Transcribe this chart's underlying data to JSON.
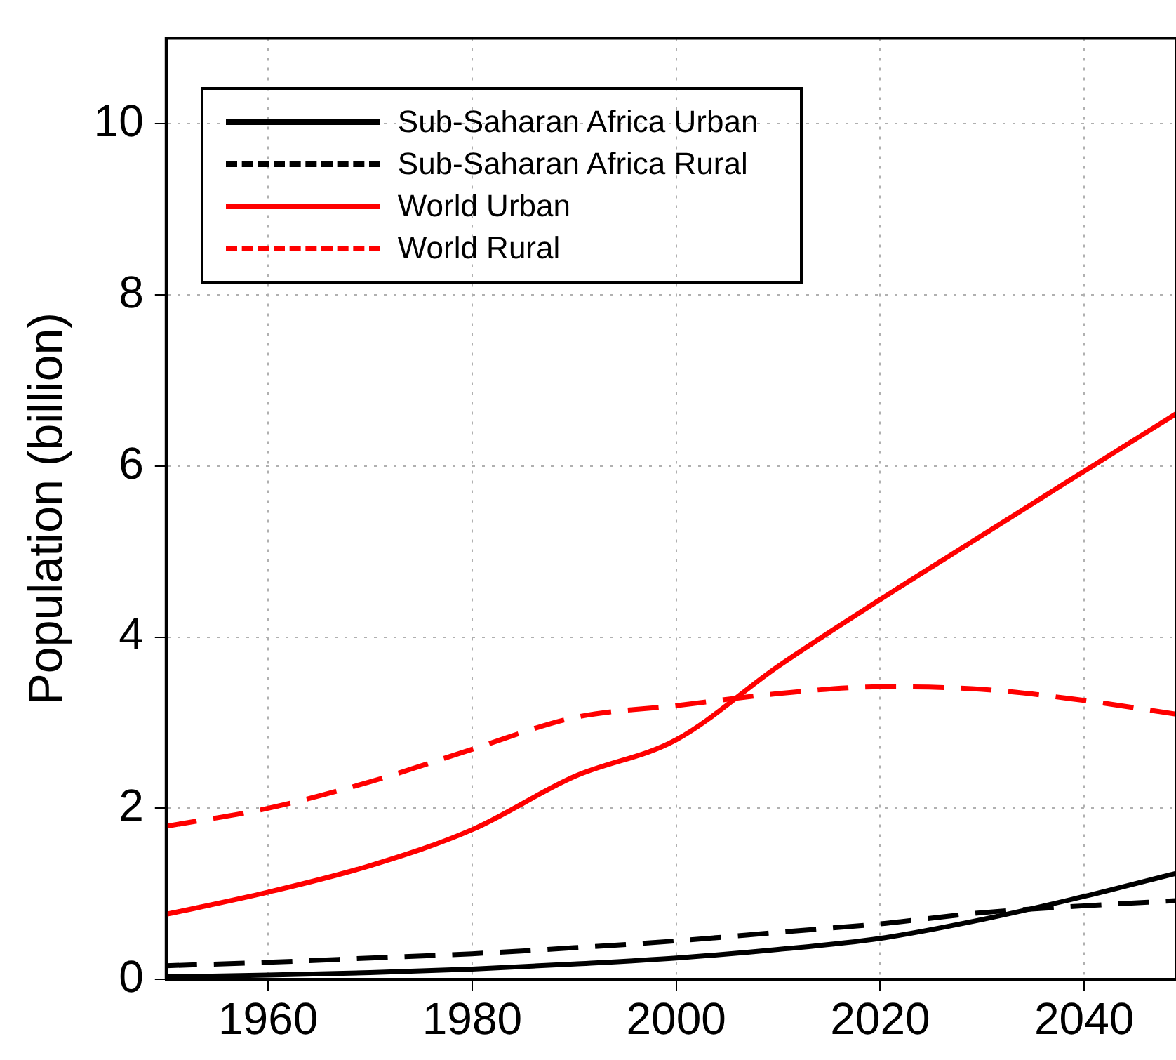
{
  "chart_data": {
    "type": "line",
    "ylabel": "Population (billion)",
    "x": [
      1950,
      1960,
      1970,
      1980,
      1990,
      2000,
      2010,
      2020,
      2030,
      2040,
      2049
    ],
    "xlim": [
      1950,
      2049
    ],
    "xticks": [
      1960,
      1980,
      2000,
      2020,
      2040
    ],
    "ylim": [
      0,
      11
    ],
    "yticks": [
      0,
      2,
      4,
      6,
      8,
      10
    ],
    "grid": true,
    "legend": "top left",
    "marker": "none",
    "series": [
      {
        "name": "Sub-Saharan Africa Urban",
        "color": "#000000",
        "line_style": "solid",
        "values": [
          0.03,
          0.05,
          0.08,
          0.12,
          0.18,
          0.25,
          0.35,
          0.48,
          0.7,
          0.97,
          1.24
        ]
      },
      {
        "name": "Sub-Saharan Africa Rural",
        "color": "#000000",
        "line_style": "dashed",
        "values": [
          0.16,
          0.2,
          0.25,
          0.3,
          0.37,
          0.45,
          0.55,
          0.65,
          0.78,
          0.86,
          0.92
        ]
      },
      {
        "name": "World Urban",
        "color": "#ff0000",
        "line_style": "solid",
        "values": [
          0.76,
          1.02,
          1.33,
          1.75,
          2.37,
          2.8,
          3.66,
          4.44,
          5.19,
          5.94,
          6.61
        ]
      },
      {
        "name": "World Rural",
        "color": "#ff0000",
        "line_style": "dashed",
        "values": [
          1.79,
          2.0,
          2.31,
          2.69,
          3.06,
          3.2,
          3.34,
          3.42,
          3.39,
          3.26,
          3.1
        ]
      }
    ]
  }
}
